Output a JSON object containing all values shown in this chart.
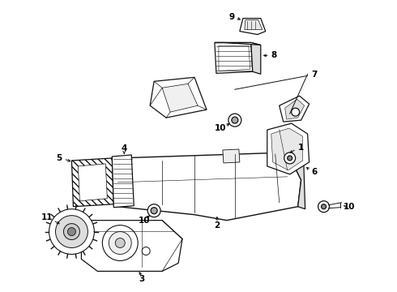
{
  "background_color": "#ffffff",
  "line_color": "#111111",
  "label_color": "#000000",
  "fig_width": 4.9,
  "fig_height": 3.6,
  "dpi": 100,
  "label_fontsize": 7.5,
  "label_bold": true
}
